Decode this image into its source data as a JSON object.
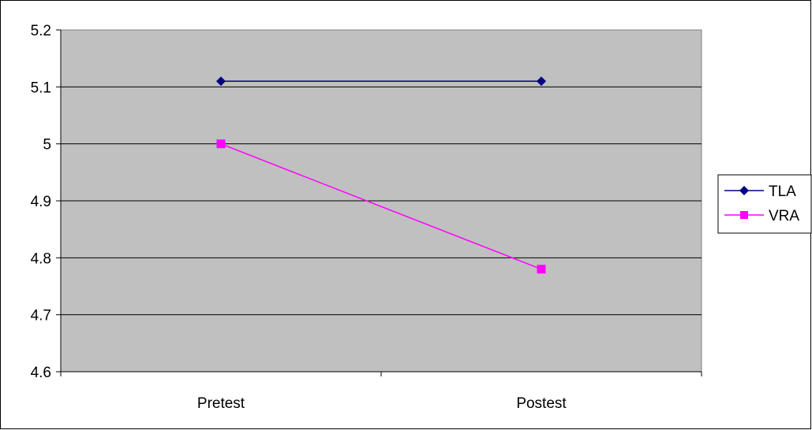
{
  "chart_data": {
    "type": "line",
    "categories": [
      "Pretest",
      "Postest"
    ],
    "series": [
      {
        "name": "TLA",
        "values": [
          5.11,
          5.11
        ],
        "color": "#000080",
        "marker": "diamond"
      },
      {
        "name": "VRA",
        "values": [
          5.0,
          4.78
        ],
        "color": "#FF00FF",
        "marker": "square"
      }
    ],
    "ylim": [
      4.6,
      5.2
    ],
    "y_ticks": [
      "4.6",
      "4.7",
      "4.8",
      "4.9",
      "5",
      "5.1",
      "5.2"
    ],
    "grid": true,
    "plot_background": "#C0C0C0",
    "legend_position": "right"
  }
}
